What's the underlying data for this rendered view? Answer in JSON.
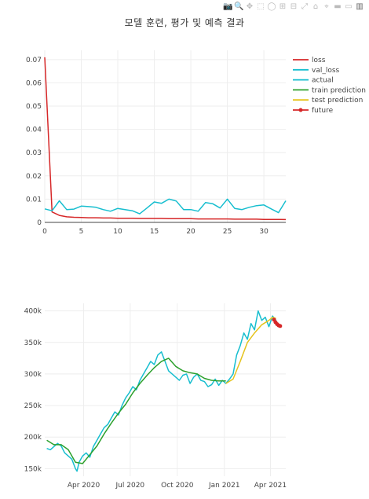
{
  "title": "모델 훈련, 평가 및 예측 결과",
  "modebar": {
    "icons": [
      "camera-icon",
      "zoom-icon",
      "pan-icon",
      "box-select-icon",
      "lasso-icon",
      "zoom-in-icon",
      "zoom-out-icon",
      "autoscale-icon",
      "reset-axes-icon",
      "spike-lines-icon",
      "hover-closest-icon",
      "hover-compare-icon",
      "plotly-logo-icon"
    ],
    "glyphs": [
      "📷",
      "🔍",
      "✥",
      "⬚",
      "◯",
      "⊞",
      "⊟",
      "⤢",
      "⌂",
      "⌖",
      "▬",
      "▭",
      "▥"
    ]
  },
  "colors": {
    "loss": "#d62728",
    "val_loss": "#17becf",
    "actual": "#17becf",
    "train_prediction": "#2ca02c",
    "test_prediction": "#e5c31c",
    "future": "#d62728",
    "grid": "#eeeeee"
  },
  "legend": {
    "placement": "top-right",
    "items": [
      {
        "key": "loss",
        "label": "loss",
        "marker": false
      },
      {
        "key": "val_loss",
        "label": "val_loss",
        "marker": false
      },
      {
        "key": "actual",
        "label": "actual",
        "marker": false
      },
      {
        "key": "train_prediction",
        "label": "train prediction",
        "marker": false
      },
      {
        "key": "test_prediction",
        "label": "test prediction",
        "marker": false
      },
      {
        "key": "future",
        "label": "future",
        "marker": true
      }
    ]
  },
  "chart_data": [
    {
      "type": "line",
      "title": "",
      "xlabel": "",
      "ylabel": "",
      "xlim": [
        0,
        33
      ],
      "ylim": [
        0,
        0.074
      ],
      "xticks": [
        0,
        5,
        10,
        15,
        20,
        25,
        30
      ],
      "yticks": [
        0,
        0.01,
        0.02,
        0.03,
        0.04,
        0.05,
        0.06,
        0.07
      ],
      "ytick_labels": [
        "0",
        "0.01",
        "0.02",
        "0.03",
        "0.04",
        "0.05",
        "0.06",
        "0.07"
      ],
      "grid": true,
      "series": [
        {
          "key": "loss",
          "name": "loss",
          "x": [
            0,
            1,
            2,
            3,
            4,
            5,
            6,
            7,
            8,
            9,
            10,
            11,
            12,
            13,
            14,
            15,
            16,
            17,
            18,
            19,
            20,
            21,
            22,
            23,
            24,
            25,
            26,
            27,
            28,
            29,
            30,
            31,
            32,
            33
          ],
          "y": [
            0.071,
            0.0045,
            0.003,
            0.0024,
            0.0022,
            0.0021,
            0.002,
            0.002,
            0.0019,
            0.0019,
            0.0018,
            0.0018,
            0.0018,
            0.0017,
            0.0017,
            0.0017,
            0.0017,
            0.0016,
            0.0016,
            0.0016,
            0.0016,
            0.0015,
            0.0015,
            0.0015,
            0.0015,
            0.0015,
            0.0014,
            0.0014,
            0.0014,
            0.0014,
            0.0013,
            0.0013,
            0.0013,
            0.0012
          ]
        },
        {
          "key": "val_loss",
          "name": "val_loss",
          "x": [
            0,
            1,
            2,
            3,
            4,
            5,
            6,
            7,
            8,
            9,
            10,
            11,
            12,
            13,
            14,
            15,
            16,
            17,
            18,
            19,
            20,
            21,
            22,
            23,
            24,
            25,
            26,
            27,
            28,
            29,
            30,
            31,
            32,
            33
          ],
          "y": [
            0.0058,
            0.005,
            0.0093,
            0.0055,
            0.0057,
            0.007,
            0.0068,
            0.0065,
            0.0055,
            0.0048,
            0.006,
            0.0055,
            0.005,
            0.0037,
            0.0062,
            0.0088,
            0.0082,
            0.01,
            0.0092,
            0.0055,
            0.0055,
            0.0048,
            0.0085,
            0.008,
            0.0062,
            0.01,
            0.006,
            0.0055,
            0.0065,
            0.0072,
            0.0075,
            0.0058,
            0.0042,
            0.0093
          ]
        }
      ]
    },
    {
      "type": "line",
      "title": "",
      "xlabel": "",
      "ylabel": "",
      "x_is_date": true,
      "xlim": [
        "2020-01-16",
        "2021-05-01"
      ],
      "ylim": [
        138000,
        412000
      ],
      "xticks": [
        "2020-04-01",
        "2020-07-01",
        "2020-10-01",
        "2021-01-01",
        "2021-04-01"
      ],
      "xtick_labels": [
        "Apr 2020",
        "Jul 2020",
        "Oct 2020",
        "Jan 2021",
        "Apr 2021"
      ],
      "yticks": [
        150000,
        200000,
        250000,
        300000,
        350000,
        400000
      ],
      "ytick_labels": [
        "150k",
        "200k",
        "250k",
        "300k",
        "350k",
        "400k"
      ],
      "grid": true,
      "series": [
        {
          "key": "actual",
          "name": "actual",
          "x": [
            "2020-01-20",
            "2020-01-27",
            "2020-02-03",
            "2020-02-10",
            "2020-02-17",
            "2020-02-24",
            "2020-03-02",
            "2020-03-09",
            "2020-03-16",
            "2020-03-19",
            "2020-03-23",
            "2020-03-30",
            "2020-04-06",
            "2020-04-13",
            "2020-04-20",
            "2020-04-27",
            "2020-05-04",
            "2020-05-11",
            "2020-05-18",
            "2020-05-25",
            "2020-06-01",
            "2020-06-08",
            "2020-06-15",
            "2020-06-22",
            "2020-06-29",
            "2020-07-06",
            "2020-07-13",
            "2020-07-20",
            "2020-07-27",
            "2020-08-03",
            "2020-08-10",
            "2020-08-17",
            "2020-08-24",
            "2020-08-31",
            "2020-09-07",
            "2020-09-14",
            "2020-09-21",
            "2020-09-28",
            "2020-10-05",
            "2020-10-12",
            "2020-10-19",
            "2020-10-26",
            "2020-11-02",
            "2020-11-09",
            "2020-11-16",
            "2020-11-23",
            "2020-11-30",
            "2020-12-07",
            "2020-12-14",
            "2020-12-21",
            "2020-12-28",
            "2021-01-04",
            "2021-01-11",
            "2021-01-18",
            "2021-01-25",
            "2021-02-01",
            "2021-02-08",
            "2021-02-15",
            "2021-02-22",
            "2021-03-01",
            "2021-03-08",
            "2021-03-15",
            "2021-03-22",
            "2021-03-29",
            "2021-04-05",
            "2021-04-12"
          ],
          "y": [
            182000,
            180000,
            185000,
            190000,
            186000,
            175000,
            170000,
            165000,
            150000,
            146000,
            160000,
            170000,
            175000,
            168000,
            185000,
            195000,
            205000,
            215000,
            220000,
            230000,
            240000,
            235000,
            250000,
            262000,
            270000,
            280000,
            275000,
            290000,
            300000,
            310000,
            320000,
            315000,
            330000,
            335000,
            320000,
            305000,
            300000,
            295000,
            290000,
            298000,
            300000,
            285000,
            295000,
            300000,
            290000,
            288000,
            280000,
            283000,
            292000,
            282000,
            290000,
            285000,
            292000,
            300000,
            330000,
            345000,
            365000,
            355000,
            380000,
            370000,
            400000,
            385000,
            390000,
            375000,
            392000,
            385000
          ]
        },
        {
          "key": "train_prediction",
          "name": "train prediction",
          "x": [
            "2020-01-20",
            "2020-02-03",
            "2020-02-17",
            "2020-03-02",
            "2020-03-16",
            "2020-03-30",
            "2020-04-13",
            "2020-04-27",
            "2020-05-11",
            "2020-05-25",
            "2020-06-08",
            "2020-06-22",
            "2020-07-06",
            "2020-07-20",
            "2020-08-03",
            "2020-08-17",
            "2020-08-31",
            "2020-09-14",
            "2020-09-28",
            "2020-10-12",
            "2020-10-26",
            "2020-11-09",
            "2020-11-23",
            "2020-12-07",
            "2020-12-21",
            "2021-01-04"
          ],
          "y": [
            195000,
            188000,
            188000,
            180000,
            160000,
            158000,
            172000,
            186000,
            205000,
            222000,
            238000,
            252000,
            270000,
            285000,
            298000,
            310000,
            320000,
            325000,
            312000,
            305000,
            302000,
            300000,
            293000,
            290000,
            289000,
            289000
          ]
        },
        {
          "key": "test_prediction",
          "name": "test prediction",
          "x": [
            "2021-01-04",
            "2021-01-18",
            "2021-02-01",
            "2021-02-15",
            "2021-03-01",
            "2021-03-15",
            "2021-03-29",
            "2021-04-05",
            "2021-04-12"
          ],
          "y": [
            285000,
            292000,
            320000,
            350000,
            365000,
            378000,
            385000,
            390000,
            388000
          ]
        },
        {
          "key": "future",
          "name": "future",
          "x": [
            "2021-04-08",
            "2021-04-11",
            "2021-04-14",
            "2021-04-17",
            "2021-04-20"
          ],
          "y": [
            386000,
            382000,
            379000,
            377000,
            376000
          ]
        }
      ]
    }
  ]
}
